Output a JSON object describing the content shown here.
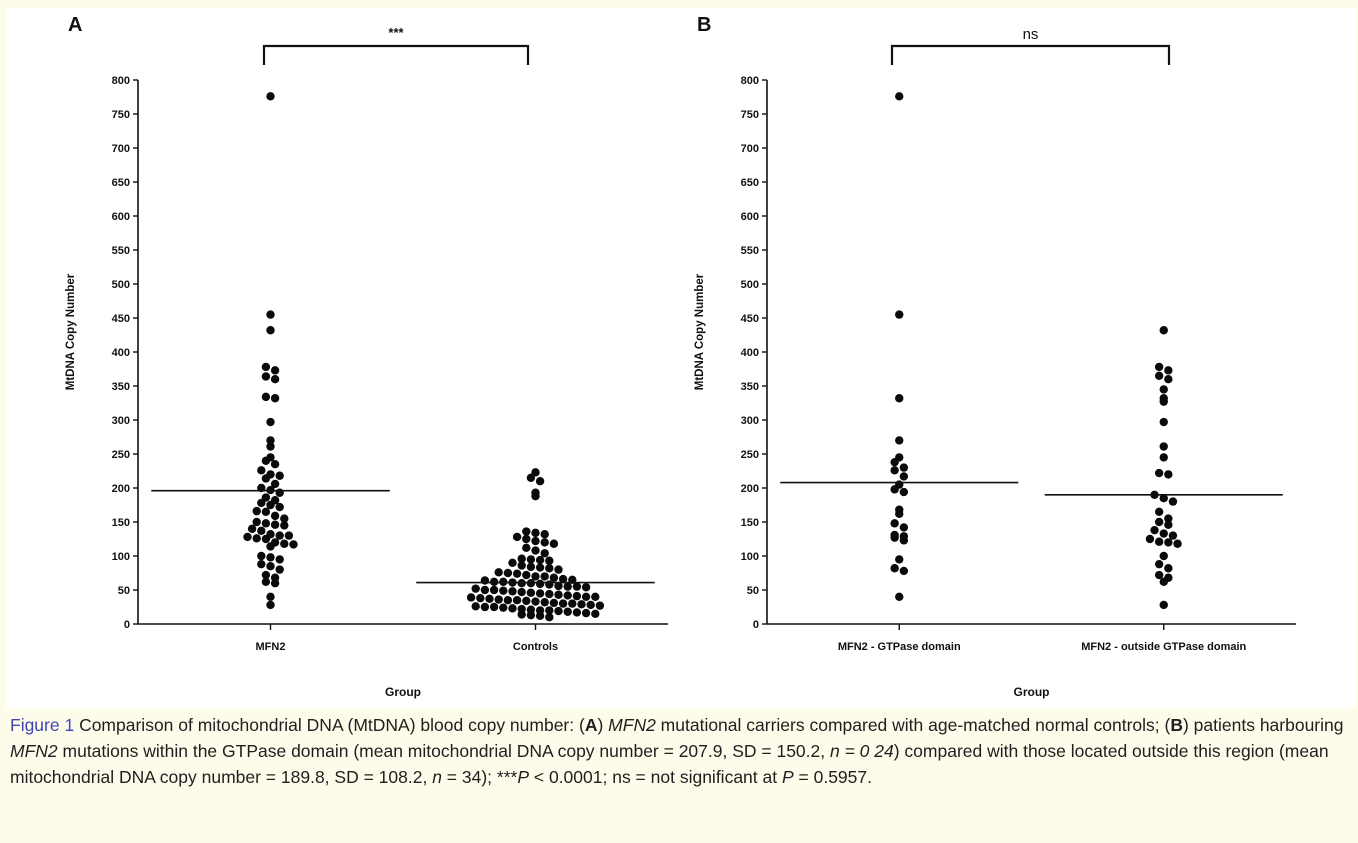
{
  "chart_data": [
    {
      "panel": "A",
      "type": "scatter",
      "xlabel": "Group",
      "ylabel": "MtDNA Copy Number",
      "ylim": [
        0,
        800
      ],
      "yticks": [
        0,
        50,
        100,
        150,
        200,
        250,
        300,
        350,
        400,
        450,
        500,
        550,
        600,
        650,
        700,
        750,
        800
      ],
      "categories": [
        "MFN2",
        "Controls"
      ],
      "significance": "***",
      "series": [
        {
          "category": "MFN2",
          "mean": 196,
          "values": [
            776,
            455,
            432,
            378,
            373,
            364,
            360,
            334,
            332,
            297,
            270,
            261,
            245,
            240,
            235,
            226,
            220,
            218,
            214,
            206,
            200,
            197,
            193,
            186,
            182,
            178,
            175,
            172,
            166,
            165,
            159,
            155,
            150,
            148,
            146,
            145,
            140,
            137,
            132,
            130,
            130,
            128,
            126,
            125,
            120,
            118,
            117,
            114,
            100,
            98,
            95,
            88,
            85,
            80,
            72,
            68,
            62,
            60,
            40,
            28
          ]
        },
        {
          "category": "Controls",
          "mean": 61,
          "values": [
            223,
            215,
            210,
            193,
            188,
            136,
            134,
            132,
            128,
            125,
            122,
            120,
            118,
            112,
            108,
            104,
            96,
            95,
            94,
            93,
            90,
            86,
            84,
            83,
            82,
            80,
            76,
            75,
            74,
            72,
            70,
            70,
            68,
            66,
            65,
            64,
            62,
            62,
            61,
            60,
            60,
            59,
            58,
            56,
            55,
            55,
            54,
            52,
            50,
            50,
            49,
            48,
            47,
            46,
            45,
            44,
            43,
            42,
            41,
            40,
            40,
            39,
            38,
            37,
            36,
            35,
            35,
            34,
            33,
            32,
            31,
            30,
            30,
            29,
            28,
            27,
            26,
            25,
            25,
            24,
            23,
            22,
            21,
            20,
            20,
            19,
            18,
            17,
            16,
            15,
            14,
            13,
            12,
            10
          ]
        }
      ]
    },
    {
      "panel": "B",
      "type": "scatter",
      "xlabel": "Group",
      "ylabel": "MtDNA Copy Number",
      "ylim": [
        0,
        800
      ],
      "yticks": [
        0,
        50,
        100,
        150,
        200,
        250,
        300,
        350,
        400,
        450,
        500,
        550,
        600,
        650,
        700,
        750,
        800
      ],
      "categories": [
        "MFN2 - GTPase domain",
        "MFN2 - outside GTPase domain"
      ],
      "significance": "ns",
      "series": [
        {
          "category": "MFN2 - GTPase domain",
          "mean": 208,
          "values": [
            776,
            455,
            332,
            270,
            245,
            238,
            230,
            226,
            217,
            205,
            198,
            194,
            168,
            162,
            148,
            142,
            131,
            129,
            127,
            123,
            95,
            82,
            78,
            40
          ]
        },
        {
          "category": "MFN2 - outside GTPase domain",
          "mean": 190,
          "values": [
            432,
            378,
            373,
            365,
            360,
            345,
            332,
            327,
            297,
            261,
            245,
            222,
            220,
            190,
            185,
            180,
            165,
            155,
            150,
            146,
            138,
            133,
            130,
            125,
            121,
            120,
            118,
            100,
            88,
            82,
            72,
            68,
            62,
            28
          ]
        }
      ]
    }
  ],
  "caption": {
    "fig_label": "Figure 1",
    "segments": [
      {
        "t": "  Comparison of mitochondrial DNA (MtDNA) blood copy number: (",
        "s": "n"
      },
      {
        "t": "A",
        "s": "b"
      },
      {
        "t": ") ",
        "s": "n"
      },
      {
        "t": "MFN2",
        "s": "i"
      },
      {
        "t": " mutational carriers compared with age-matched normal controls; (",
        "s": "n"
      },
      {
        "t": "B",
        "s": "b"
      },
      {
        "t": ") patients harbouring ",
        "s": "n"
      },
      {
        "t": "MFN2",
        "s": "i"
      },
      {
        "t": " mutations within the GTPase domain (mean mitochondrial DNA copy number = 207.9, SD = 150.2, ",
        "s": "n"
      },
      {
        "t": "n = 0 24",
        "s": "i"
      },
      {
        "t": ") compared with those located outside this region (mean mitochondrial DNA copy number = 189.8, SD = 108.2, ",
        "s": "n"
      },
      {
        "t": "n",
        "s": "i"
      },
      {
        "t": " = 34); ***",
        "s": "n"
      },
      {
        "t": "P",
        "s": "i"
      },
      {
        "t": " < 0.0001; ns = not significant at ",
        "s": "n"
      },
      {
        "t": "P",
        "s": "i"
      },
      {
        "t": " = 0.5957.",
        "s": "n"
      }
    ]
  }
}
